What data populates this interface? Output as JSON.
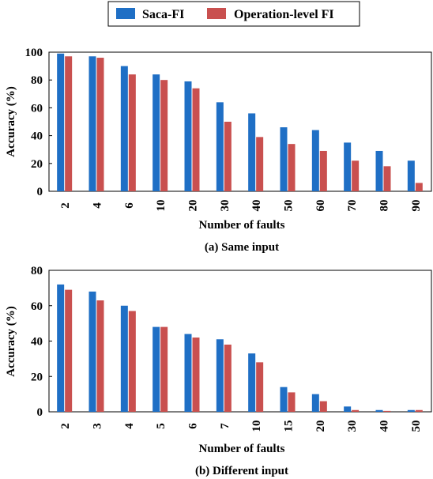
{
  "legend": {
    "items": [
      {
        "label": "Saca-FI",
        "color": "#1f6fc5"
      },
      {
        "label": "Operation-level FI",
        "color": "#c9504f"
      }
    ]
  },
  "chart_data": [
    {
      "type": "bar",
      "caption": "(a) Same input",
      "xlabel": "Number of faults",
      "ylabel": "Accuracy (%)",
      "ylim": [
        0,
        100
      ],
      "yticks": [
        0,
        20,
        40,
        60,
        80,
        100
      ],
      "categories": [
        "2",
        "4",
        "6",
        "10",
        "20",
        "30",
        "40",
        "50",
        "60",
        "70",
        "80",
        "90"
      ],
      "series": [
        {
          "name": "Saca-FI",
          "values": [
            99,
            97,
            90,
            84,
            79,
            64,
            56,
            46,
            44,
            35,
            29,
            22
          ]
        },
        {
          "name": "Operation-level FI",
          "values": [
            97,
            96,
            84,
            80,
            74,
            50,
            39,
            34,
            29,
            22,
            18,
            6
          ]
        }
      ],
      "grid": false
    },
    {
      "type": "bar",
      "caption": "(b) Different input",
      "xlabel": "Number of faults",
      "ylabel": "Accuracy (%)",
      "ylim": [
        0,
        80
      ],
      "yticks": [
        0,
        20,
        40,
        60,
        80
      ],
      "categories": [
        "2",
        "3",
        "4",
        "5",
        "6",
        "7",
        "10",
        "15",
        "20",
        "30",
        "40",
        "50"
      ],
      "series": [
        {
          "name": "Saca-FI",
          "values": [
            72,
            68,
            60,
            48,
            44,
            41,
            33,
            14,
            10,
            3,
            1,
            1
          ]
        },
        {
          "name": "Operation-level FI",
          "values": [
            69,
            63,
            57,
            48,
            42,
            38,
            28,
            11,
            6,
            1,
            0.5,
            1
          ]
        }
      ],
      "grid": false
    }
  ]
}
